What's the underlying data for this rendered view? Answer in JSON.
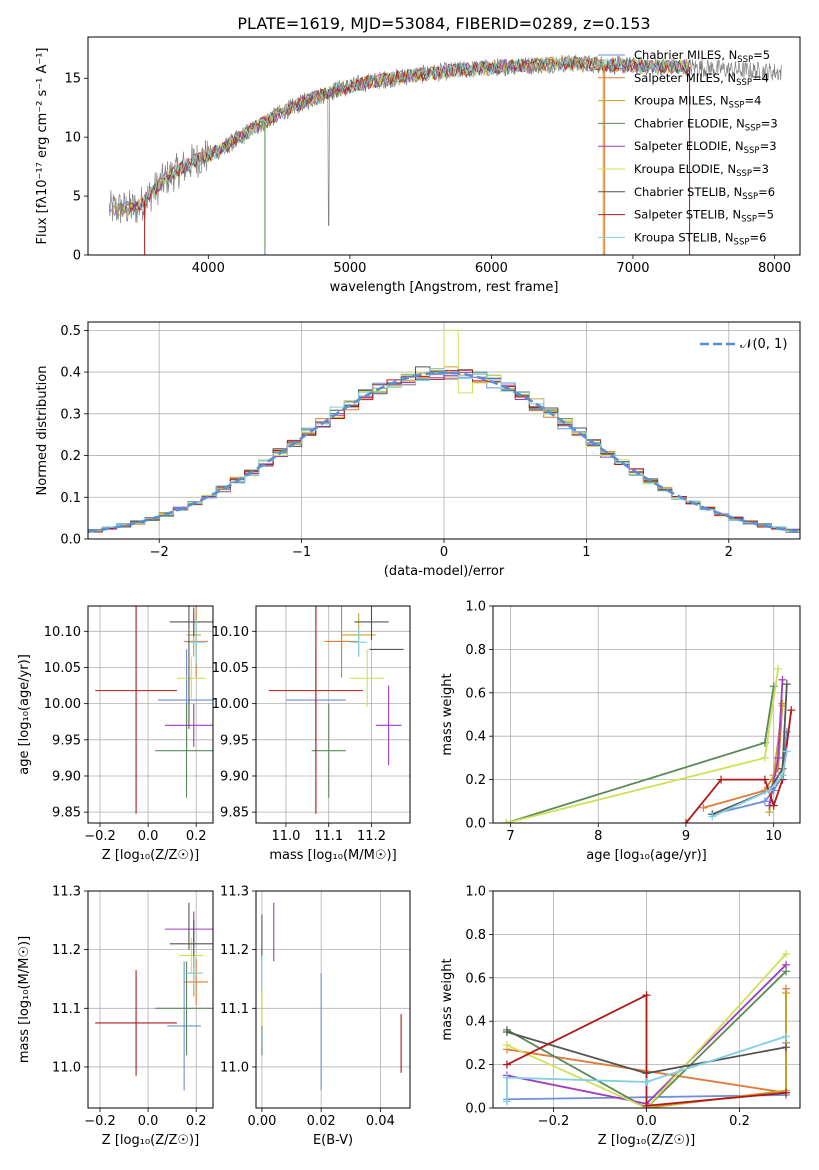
{
  "figure_title": "PLATE=1619, MJD=53084, FIBERID=0289, z=0.153",
  "colors": [
    "#4c72b0",
    "#dd8452",
    "#55a868",
    "#c44e52",
    "#8172b3",
    "#937860",
    "#da8bc3",
    "#8c8c8c",
    "#ccb974",
    "#64b5cd"
  ],
  "legend_models": [
    {
      "label": "Chabrier MILES, N",
      "sub": "SSP",
      "eq": "=5",
      "color": "#6f8fd8"
    },
    {
      "label": "Salpeter MILES, N",
      "sub": "SSP",
      "eq": "=4",
      "color": "#e07b39"
    },
    {
      "label": "Kroupa MILES, N",
      "sub": "SSP",
      "eq": "=4",
      "color": "#c9a227"
    },
    {
      "label": "Chabrier ELODIE, N",
      "sub": "SSP",
      "eq": "=3",
      "color": "#5a8a5a"
    },
    {
      "label": "Salpeter ELODIE, N",
      "sub": "SSP",
      "eq": "=3",
      "color": "#a03cc0"
    },
    {
      "label": "Kroupa ELODIE, N",
      "sub": "SSP",
      "eq": "=3",
      "color": "#cfe055"
    },
    {
      "label": "Chabrier STELIB, N",
      "sub": "SSP",
      "eq": "=6",
      "color": "#555555"
    },
    {
      "label": "Salpeter STELIB, N",
      "sub": "SSP",
      "eq": "=5",
      "color": "#b01818"
    },
    {
      "label": "Kroupa STELIB, N",
      "sub": "SSP",
      "eq": "=6",
      "color": "#80d0e0"
    }
  ],
  "chart_data": [
    {
      "id": "spectrum",
      "type": "line",
      "xlabel": "wavelength [Angstrom, rest frame]",
      "ylabel": "Flux [fλ10⁻¹⁷ erg cm⁻² s⁻¹ A⁻¹]",
      "xlim": [
        3150,
        8180
      ],
      "ylim": [
        0,
        18.5
      ],
      "xticks": [
        4000,
        5000,
        6000,
        7000,
        8000
      ],
      "yticks": [
        0,
        5,
        10,
        15
      ],
      "grid": false,
      "legend_position": "lower-right",
      "continuum": {
        "x": [
          3300,
          3500,
          3700,
          3900,
          4100,
          4300,
          4500,
          4700,
          4900,
          5100,
          5300,
          5500,
          5700,
          5900,
          6100,
          6300,
          6500,
          6700,
          6900,
          7100,
          7300,
          7500,
          7700,
          7900,
          8050
        ],
        "y": [
          3.9,
          4.0,
          6.5,
          8.0,
          9.0,
          10.6,
          12.0,
          13.1,
          14.0,
          14.6,
          15.0,
          15.3,
          15.6,
          15.8,
          16.0,
          16.1,
          16.3,
          16.2,
          16.1,
          16.0,
          16.0,
          15.9,
          15.7,
          15.6,
          15.5
        ]
      }
    },
    {
      "id": "residual-histogram",
      "type": "line",
      "xlabel": "(data-model)/error",
      "ylabel": "Normed distribution",
      "xlim": [
        -2.5,
        2.5
      ],
      "ylim": [
        0,
        0.52
      ],
      "xticks": [
        -2,
        -1,
        0,
        1,
        2
      ],
      "yticks": [
        0.0,
        0.1,
        0.2,
        0.3,
        0.4,
        0.5
      ],
      "grid": true,
      "legend_position": "top-right",
      "reference_label": "𝒩(0, 1)",
      "bin_width": 0.1
    },
    {
      "id": "age-vs-Z",
      "type": "scatter",
      "xlabel": "Z [log₁₀(Z/Z☉)]",
      "ylabel": "age  [log₁₀(age/yr)]",
      "xlim": [
        -0.25,
        0.27
      ],
      "ylim": [
        9.835,
        10.135
      ],
      "xticks": [
        -0.2,
        0.0,
        0.2
      ],
      "yticks": [
        9.85,
        9.9,
        9.95,
        10.0,
        10.05,
        10.1
      ],
      "grid": true,
      "points": [
        {
          "model": 0,
          "x": 0.16,
          "y": 10.005,
          "xerr": 0.12,
          "yerr": 0.07
        },
        {
          "model": 1,
          "x": 0.2,
          "y": 10.086,
          "xerr": 0.05,
          "yerr": 0.05
        },
        {
          "model": 2,
          "x": 0.19,
          "y": 10.095,
          "xerr": 0.03,
          "yerr": 0.03
        },
        {
          "model": 3,
          "x": 0.16,
          "y": 9.935,
          "xerr": 0.13,
          "yerr": 0.065
        },
        {
          "model": 4,
          "x": 0.19,
          "y": 9.97,
          "xerr": 0.12,
          "yerr": 0.03
        },
        {
          "model": 5,
          "x": 0.18,
          "y": 10.035,
          "xerr": 0.06,
          "yerr": 0.03
        },
        {
          "model": 6,
          "x": 0.19,
          "y": 10.113,
          "xerr": 0.1,
          "yerr": 0.02
        },
        {
          "model": 7,
          "x": -0.05,
          "y": 10.018,
          "xerr": 0.17,
          "yerr": 0.17
        },
        {
          "model": 8,
          "x": 0.2,
          "y": 10.085,
          "xerr": 0.04,
          "yerr": 0.03
        },
        {
          "model": 6,
          "x": 0.17,
          "y": 10.05,
          "xerr": 0.0,
          "yerr": 0.085
        }
      ]
    },
    {
      "id": "age-vs-mass",
      "type": "scatter",
      "xlabel": "mass [log₁₀(M/M☉)]",
      "ylabel": "",
      "xlim": [
        10.93,
        11.29
      ],
      "ylim": [
        9.835,
        10.135
      ],
      "xticks": [
        11.0,
        11.1,
        11.2
      ],
      "yticks": [
        9.85,
        9.9,
        9.95,
        10.0,
        10.05,
        10.1
      ],
      "grid": true,
      "points": [
        {
          "model": 0,
          "x": 11.07,
          "y": 10.005,
          "xerr": 0.07,
          "yerr": 0.07
        },
        {
          "model": 1,
          "x": 11.13,
          "y": 10.086,
          "xerr": 0.04,
          "yerr": 0.05
        },
        {
          "model": 2,
          "x": 11.17,
          "y": 10.095,
          "xerr": 0.04,
          "yerr": 0.03
        },
        {
          "model": 3,
          "x": 11.1,
          "y": 9.935,
          "xerr": 0.04,
          "yerr": 0.065
        },
        {
          "model": 4,
          "x": 11.24,
          "y": 9.97,
          "xerr": 0.03,
          "yerr": 0.055
        },
        {
          "model": 5,
          "x": 11.19,
          "y": 10.035,
          "xerr": 0.04,
          "yerr": 0.04
        },
        {
          "model": 6,
          "x": 11.2,
          "y": 10.113,
          "xerr": 0.04,
          "yerr": 0.025
        },
        {
          "model": 7,
          "x": 11.07,
          "y": 10.018,
          "xerr": 0.11,
          "yerr": 0.17
        },
        {
          "model": 8,
          "x": 11.17,
          "y": 10.085,
          "xerr": 0.02,
          "yerr": 0.02
        },
        {
          "model": 6,
          "x": 11.235,
          "y": 10.075,
          "xerr": 0.04,
          "yerr": 0.0
        }
      ]
    },
    {
      "id": "mass-weight-vs-age",
      "type": "line",
      "xlabel": "age  [log₁₀(age/yr)]",
      "ylabel": "mass weight",
      "xlim": [
        6.8,
        10.3
      ],
      "ylim": [
        0,
        1.0
      ],
      "xticks": [
        7,
        8,
        9,
        10
      ],
      "yticks": [
        0.0,
        0.2,
        0.4,
        0.6,
        0.8,
        1.0
      ],
      "grid": true,
      "series": [
        {
          "model": 0,
          "x": [
            9.3,
            9.9,
            10.0,
            10.1,
            10.15
          ],
          "y": [
            0.04,
            0.1,
            0.15,
            0.22,
            0.42
          ]
        },
        {
          "model": 1,
          "x": [
            9.2,
            9.9,
            10.05,
            10.1
          ],
          "y": [
            0.07,
            0.15,
            0.25,
            0.55
          ]
        },
        {
          "model": 2,
          "x": [
            9.95,
            10.0,
            10.1
          ],
          "y": [
            0.05,
            0.22,
            0.54
          ]
        },
        {
          "model": 3,
          "x": [
            6.95,
            9.9,
            10.0
          ],
          "y": [
            0.0,
            0.37,
            0.63
          ]
        },
        {
          "model": 4,
          "x": [
            9.95,
            10.05,
            10.1
          ],
          "y": [
            0.08,
            0.3,
            0.66
          ]
        },
        {
          "model": 5,
          "x": [
            6.95,
            9.9,
            10.05
          ],
          "y": [
            0.0,
            0.3,
            0.71
          ]
        },
        {
          "model": 6,
          "x": [
            9.3,
            9.95,
            10.1,
            10.15
          ],
          "y": [
            0.04,
            0.15,
            0.25,
            0.64
          ]
        },
        {
          "model": 7,
          "x": [
            9.0,
            9.4,
            9.9,
            10.0,
            10.1,
            10.2
          ],
          "y": [
            0.0,
            0.2,
            0.2,
            0.08,
            0.2,
            0.52
          ]
        },
        {
          "model": 8,
          "x": [
            9.3,
            9.95,
            10.1,
            10.15
          ],
          "y": [
            0.03,
            0.15,
            0.22,
            0.33
          ]
        }
      ]
    },
    {
      "id": "mass-vs-Z",
      "type": "scatter",
      "xlabel": "Z [log₁₀(Z/Z☉)]",
      "ylabel": "mass [log₁₀(M/M☉)]",
      "xlim": [
        -0.25,
        0.27
      ],
      "ylim": [
        10.93,
        11.3
      ],
      "xticks": [
        -0.2,
        0.0,
        0.2
      ],
      "yticks": [
        11.0,
        11.1,
        11.2,
        11.3
      ],
      "grid": true,
      "points": [
        {
          "model": 0,
          "x": 0.15,
          "y": 11.07,
          "xerr": 0.07,
          "yerr": 0.11
        },
        {
          "model": 1,
          "x": 0.2,
          "y": 11.145,
          "xerr": 0.05,
          "yerr": 0.04
        },
        {
          "model": 2,
          "x": 0.19,
          "y": 11.16,
          "xerr": 0.03,
          "yerr": 0.04
        },
        {
          "model": 3,
          "x": 0.16,
          "y": 11.1,
          "xerr": 0.13,
          "yerr": 0.08
        },
        {
          "model": 4,
          "x": 0.19,
          "y": 11.235,
          "xerr": 0.12,
          "yerr": 0.03
        },
        {
          "model": 5,
          "x": 0.18,
          "y": 11.19,
          "xerr": 0.05,
          "yerr": 0.03
        },
        {
          "model": 6,
          "x": 0.19,
          "y": 11.21,
          "xerr": 0.1,
          "yerr": 0.04
        },
        {
          "model": 7,
          "x": -0.05,
          "y": 11.075,
          "xerr": 0.17,
          "yerr": 0.09
        },
        {
          "model": 8,
          "x": 0.19,
          "y": 11.16,
          "xerr": 0.04,
          "yerr": 0.03
        },
        {
          "model": 6,
          "x": 0.17,
          "y": 11.24,
          "xerr": 0.0,
          "yerr": 0.04
        }
      ]
    },
    {
      "id": "mass-vs-EBV",
      "type": "scatter",
      "xlabel": "E(B-V)",
      "ylabel": "",
      "xlim": [
        -0.002,
        0.05
      ],
      "ylim": [
        10.93,
        11.3
      ],
      "xticks": [
        0.0,
        0.02,
        0.04
      ],
      "yticks": [
        11.0,
        11.1,
        11.2,
        11.3
      ],
      "grid": true,
      "points": [
        {
          "model": 0,
          "x": 0.02,
          "y": 11.06,
          "xerr": 0.0,
          "yerr": 0.1
        },
        {
          "model": 1,
          "x": 0.0,
          "y": 11.15,
          "xerr": 0.0,
          "yerr": 0.04
        },
        {
          "model": 2,
          "x": 0.0,
          "y": 11.16,
          "xerr": 0.0,
          "yerr": 0.04
        },
        {
          "model": 3,
          "x": 0.0,
          "y": 11.1,
          "xerr": 0.0,
          "yerr": 0.08
        },
        {
          "model": 4,
          "x": 0.004,
          "y": 11.23,
          "xerr": 0.0,
          "yerr": 0.05
        },
        {
          "model": 5,
          "x": 0.0,
          "y": 11.14,
          "xerr": 0.0,
          "yerr": 0.07
        },
        {
          "model": 6,
          "x": 0.0,
          "y": 11.22,
          "xerr": 0.0,
          "yerr": 0.04
        },
        {
          "model": 7,
          "x": 0.047,
          "y": 11.04,
          "xerr": 0.0,
          "yerr": 0.05
        },
        {
          "model": 8,
          "x": 0.0,
          "y": 11.16,
          "xerr": 0.0,
          "yerr": 0.03
        }
      ]
    },
    {
      "id": "mass-weight-vs-Z",
      "type": "line",
      "xlabel": "Z [log₁₀(Z/Z☉)]",
      "ylabel": "mass weight",
      "xlim": [
        -0.33,
        0.33
      ],
      "ylim": [
        0,
        1.0
      ],
      "xticks": [
        -0.2,
        0.0,
        0.2
      ],
      "yticks": [
        0.0,
        0.2,
        0.4,
        0.6,
        0.8,
        1.0
      ],
      "grid": true,
      "series": [
        {
          "model": 0,
          "x": [
            -0.3,
            0.0,
            0.3,
            0.3
          ],
          "y": [
            0.04,
            0.05,
            0.06,
            0.3
          ]
        },
        {
          "model": 1,
          "x": [
            -0.3,
            0.3,
            0.3
          ],
          "y": [
            0.27,
            0.07,
            0.55
          ]
        },
        {
          "model": 2,
          "x": [
            0.0,
            0.3,
            0.3
          ],
          "y": [
            0.0,
            0.08,
            0.53
          ]
        },
        {
          "model": 3,
          "x": [
            -0.3,
            0.0,
            0.3
          ],
          "y": [
            0.36,
            0.0,
            0.63
          ]
        },
        {
          "model": 4,
          "x": [
            -0.3,
            0.0,
            0.3
          ],
          "y": [
            0.15,
            0.02,
            0.66
          ]
        },
        {
          "model": 5,
          "x": [
            -0.3,
            0.0,
            0.3
          ],
          "y": [
            0.29,
            0.0,
            0.71
          ]
        },
        {
          "model": 6,
          "x": [
            -0.3,
            0.0,
            0.3
          ],
          "y": [
            0.35,
            0.16,
            0.28
          ]
        },
        {
          "model": 7,
          "x": [
            -0.3,
            0.0,
            0.0,
            0.3
          ],
          "y": [
            0.2,
            0.52,
            0.01,
            0.07
          ]
        },
        {
          "model": 8,
          "x": [
            -0.3,
            -0.3,
            0.0,
            0.3
          ],
          "y": [
            0.03,
            0.14,
            0.12,
            0.33
          ]
        }
      ]
    }
  ]
}
